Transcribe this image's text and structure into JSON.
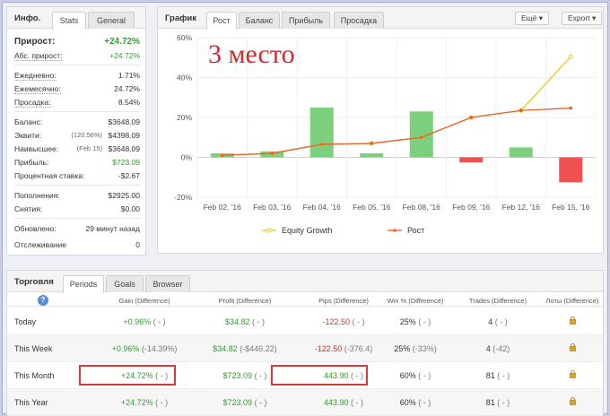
{
  "stats": {
    "title": "Инфо.",
    "tabs": [
      "Stats",
      "General"
    ],
    "rows": [
      {
        "label": "Прирост:",
        "value": "+24.72%"
      },
      {
        "label": "Абс. прирост:",
        "value": "+24.72%"
      },
      {
        "label": "Ежедневно:",
        "value": "1.71%"
      },
      {
        "label": "Ежемесячно:",
        "value": "24.72%"
      },
      {
        "label": "Просадка:",
        "value": "8.54%"
      },
      {
        "label": "Баланс:",
        "value": "$3648.09"
      },
      {
        "label": "Эквити:",
        "note": "(120.56%)",
        "value": "$4398.09"
      },
      {
        "label": "Наивысшее:",
        "note": "(Feb 15)",
        "value": "$3648.09"
      },
      {
        "label": "Прибыль:",
        "value": "$723.09"
      },
      {
        "label": "Процентная ставка:",
        "value": "-$2.67"
      },
      {
        "label": "Пополнения:",
        "value": "$2925.00"
      },
      {
        "label": "Снятия:",
        "value": "$0.00"
      },
      {
        "label": "Обновлено:",
        "value": "29 минут назад"
      },
      {
        "label": "Отслеживание",
        "value": "0"
      }
    ]
  },
  "chart_panel": {
    "title": "График",
    "tabs": [
      "Рост",
      "Баланс",
      "Прибыль",
      "Просадка"
    ],
    "more_label": "Ещё",
    "export_label": "Export",
    "overlay_text": "3 место"
  },
  "chart_data": {
    "type": "bar+line",
    "categories": [
      "Feb 02, '16",
      "Feb 03, '16",
      "Feb 04, '16",
      "Feb 05, '16",
      "Feb 08, '16",
      "Feb 09, '16",
      "Feb 12, '16",
      "Feb 15, '16"
    ],
    "yticks": [
      "60%",
      "40%",
      "20%",
      "0%",
      "-20%"
    ],
    "ylim": [
      -20,
      60
    ],
    "series": [
      {
        "name": "",
        "kind": "bar",
        "values": [
          2,
          3,
          25,
          2,
          23,
          -2.5,
          5,
          -12.5
        ]
      },
      {
        "name": "Equity Growth",
        "kind": "line",
        "color": "#f2c51c",
        "values": [
          1,
          2,
          6.5,
          7,
          10,
          20,
          23.5,
          50.5
        ]
      },
      {
        "name": "Рост",
        "kind": "line",
        "color": "#e8602c",
        "values": [
          1,
          2,
          6.5,
          7,
          10,
          20,
          23.5,
          24.7
        ]
      }
    ],
    "legend": [
      "Equity Growth",
      "Рост"
    ],
    "colors": {
      "bar_pos": "#7ccf7c",
      "bar_neg": "#f05050"
    }
  },
  "trading": {
    "title": "Торговля",
    "tabs": [
      "Periods",
      "Goals",
      "Browser"
    ],
    "help_icon": "?",
    "columns": [
      "Gain (Difference)",
      "Profit (Difference)",
      "Pips (Difference)",
      "Win % (Difference)",
      "Trades (Difference)",
      "Лоты (Difference)"
    ],
    "rows": [
      {
        "period": "Today",
        "gain": "+0.96%",
        "gain_diff": "( - )",
        "profit": "$34.82",
        "profit_diff": "( - )",
        "pips": "-122.50",
        "pips_diff": "( - )",
        "win": "25%",
        "win_diff": "( - )",
        "trades": "4",
        "trades_diff": "( - )"
      },
      {
        "period": "This Week",
        "gain": "+0.96%",
        "gain_diff": "(-14.39%)",
        "profit": "$34.82",
        "profit_diff": "(-$446.22)",
        "pips": "-122.50",
        "pips_diff": "(-376.4)",
        "win": "25%",
        "win_diff": "(-33%)",
        "trades": "4",
        "trades_diff": "(-42)"
      },
      {
        "period": "This Month",
        "gain": "+24.72%",
        "gain_diff": "( - )",
        "profit": "$723.09",
        "profit_diff": "( - )",
        "pips": "443.90",
        "pips_diff": "( - )",
        "win": "60%",
        "win_diff": "( - )",
        "trades": "81",
        "trades_diff": "( - )"
      },
      {
        "period": "This Year",
        "gain": "+24.72%",
        "gain_diff": "( - )",
        "profit": "$723.09",
        "profit_diff": "( - )",
        "pips": "443.90",
        "pips_diff": "( - )",
        "win": "60%",
        "win_diff": "( - )",
        "trades": "81",
        "trades_diff": "( - )"
      }
    ]
  }
}
